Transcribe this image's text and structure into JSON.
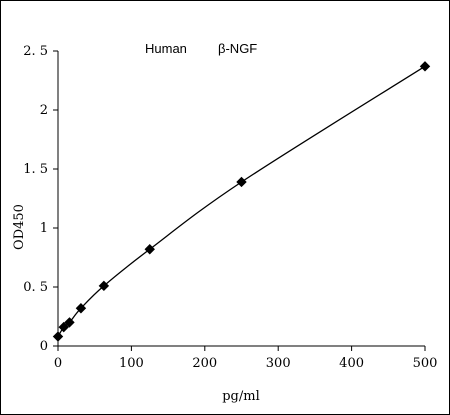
{
  "chart_data": {
    "type": "line",
    "title_parts": [
      "Human",
      "β-NGF"
    ],
    "xlabel": "pg/ml",
    "ylabel": "OD450",
    "xlim": [
      0,
      500
    ],
    "ylim": [
      0,
      2.5
    ],
    "xticks": [
      0,
      100,
      200,
      300,
      400,
      500
    ],
    "yticks": [
      0,
      0.5,
      1,
      1.5,
      2,
      2.5
    ],
    "ytick_labels": [
      "0",
      "0. 5",
      "1",
      "1. 5",
      "2",
      "2. 5"
    ],
    "grid": false,
    "legend": "none",
    "series": [
      {
        "marker": "diamond",
        "line": "smooth",
        "color": "#000000",
        "x": [
          0,
          7.8,
          15.6,
          31.25,
          62.5,
          125,
          250,
          500
        ],
        "y": [
          0.08,
          0.16,
          0.2,
          0.32,
          0.51,
          0.82,
          1.39,
          2.37
        ]
      }
    ]
  }
}
